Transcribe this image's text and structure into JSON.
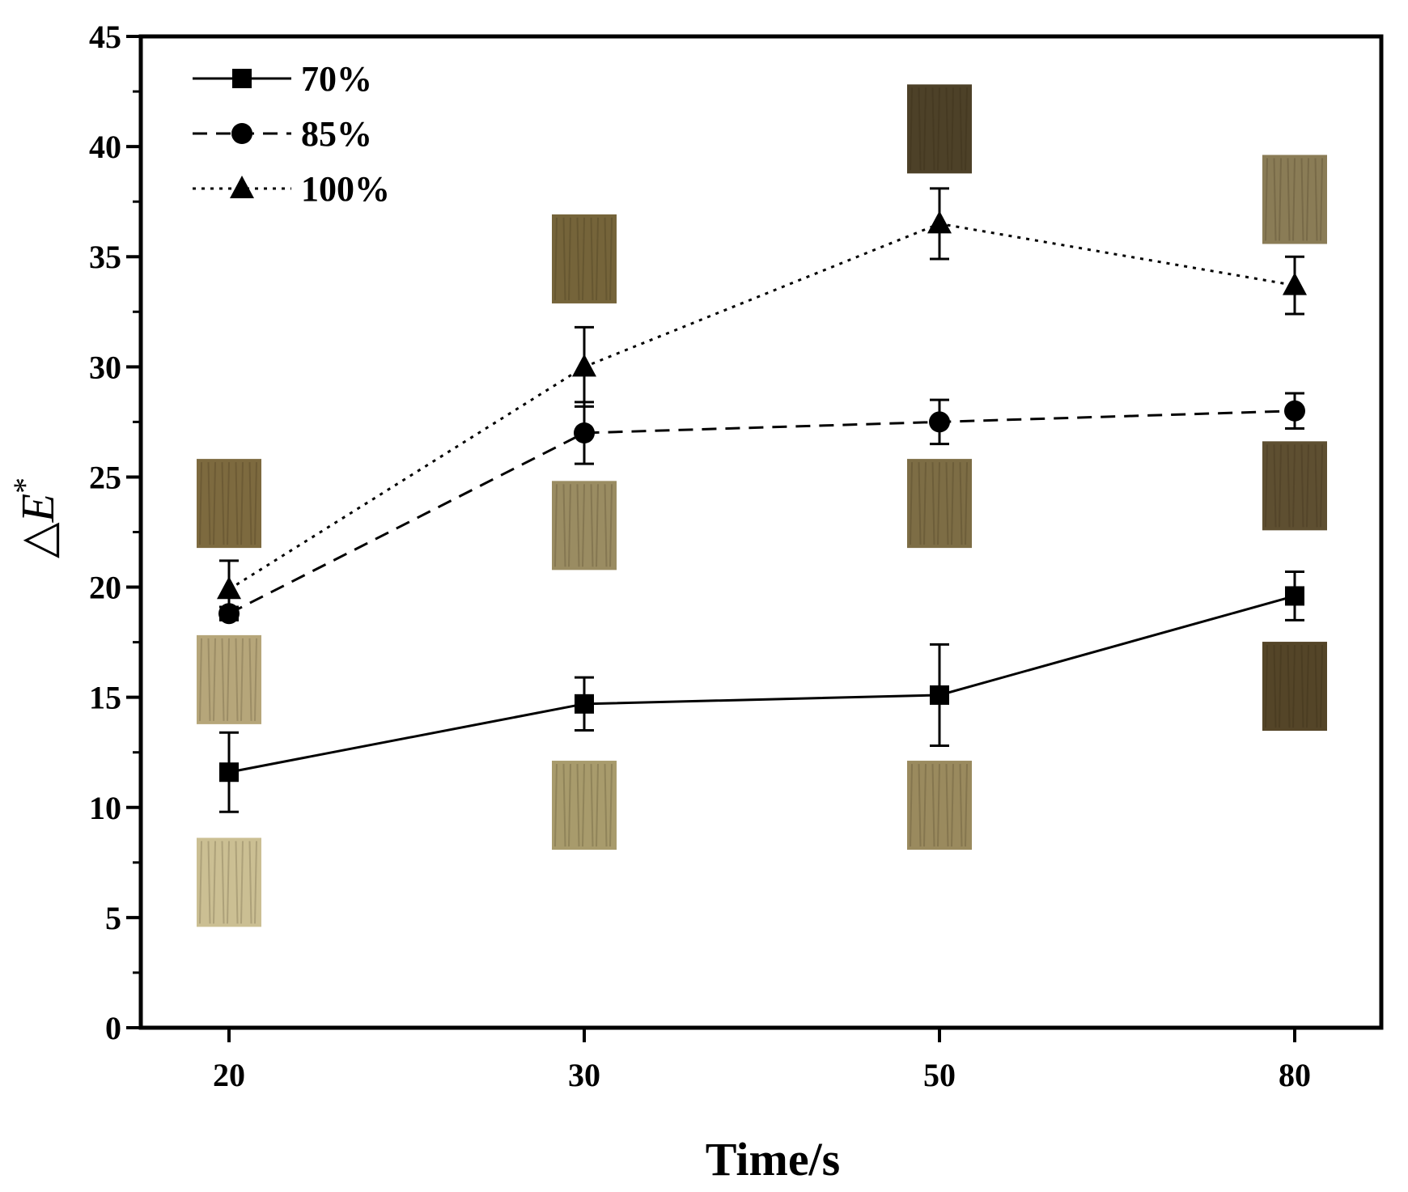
{
  "chart_data": {
    "type": "line",
    "title": "",
    "xlabel": "Time/s",
    "ylabel": "△E*",
    "ylabel_parts": {
      "delta": "△",
      "symbol": "E",
      "sup": "*"
    },
    "categories": [
      "20",
      "30",
      "50",
      "80"
    ],
    "ylim": [
      0,
      45
    ],
    "yticks": [
      0,
      5,
      10,
      15,
      20,
      25,
      30,
      35,
      40,
      45
    ],
    "legend_position": "top-left",
    "series": [
      {
        "name": "70%",
        "marker": "square",
        "line": "solid",
        "values": [
          11.6,
          14.7,
          15.1,
          19.6
        ],
        "errors": [
          1.8,
          1.2,
          2.3,
          1.1
        ]
      },
      {
        "name": "85%",
        "marker": "circle",
        "line": "dashed",
        "values": [
          18.8,
          27.0,
          27.5,
          28.0
        ],
        "errors": [
          0.3,
          1.4,
          1.0,
          0.8
        ]
      },
      {
        "name": "100%",
        "marker": "triangle",
        "line": "dotted",
        "values": [
          19.9,
          30.0,
          36.5,
          33.7
        ],
        "errors": [
          1.3,
          1.8,
          1.6,
          1.3
        ]
      }
    ],
    "sample_images": [
      {
        "x": "20",
        "y_center": 6.6,
        "color": "#cbbf93"
      },
      {
        "x": "20",
        "y_center": 15.8,
        "color": "#b6a67a"
      },
      {
        "x": "20",
        "y_center": 23.8,
        "color": "#7d6a3f"
      },
      {
        "x": "30",
        "y_center": 10.1,
        "color": "#a89b6c"
      },
      {
        "x": "30",
        "y_center": 22.8,
        "color": "#9a8c62"
      },
      {
        "x": "30",
        "y_center": 34.9,
        "color": "#75643a"
      },
      {
        "x": "50",
        "y_center": 10.1,
        "color": "#9a8a5e"
      },
      {
        "x": "50",
        "y_center": 23.8,
        "color": "#7d6d45"
      },
      {
        "x": "50",
        "y_center": 40.8,
        "color": "#4d4128"
      },
      {
        "x": "80",
        "y_center": 15.5,
        "color": "#544528"
      },
      {
        "x": "80",
        "y_center": 24.6,
        "color": "#5e4f31"
      },
      {
        "x": "80",
        "y_center": 37.6,
        "color": "#8a7c56"
      }
    ]
  }
}
